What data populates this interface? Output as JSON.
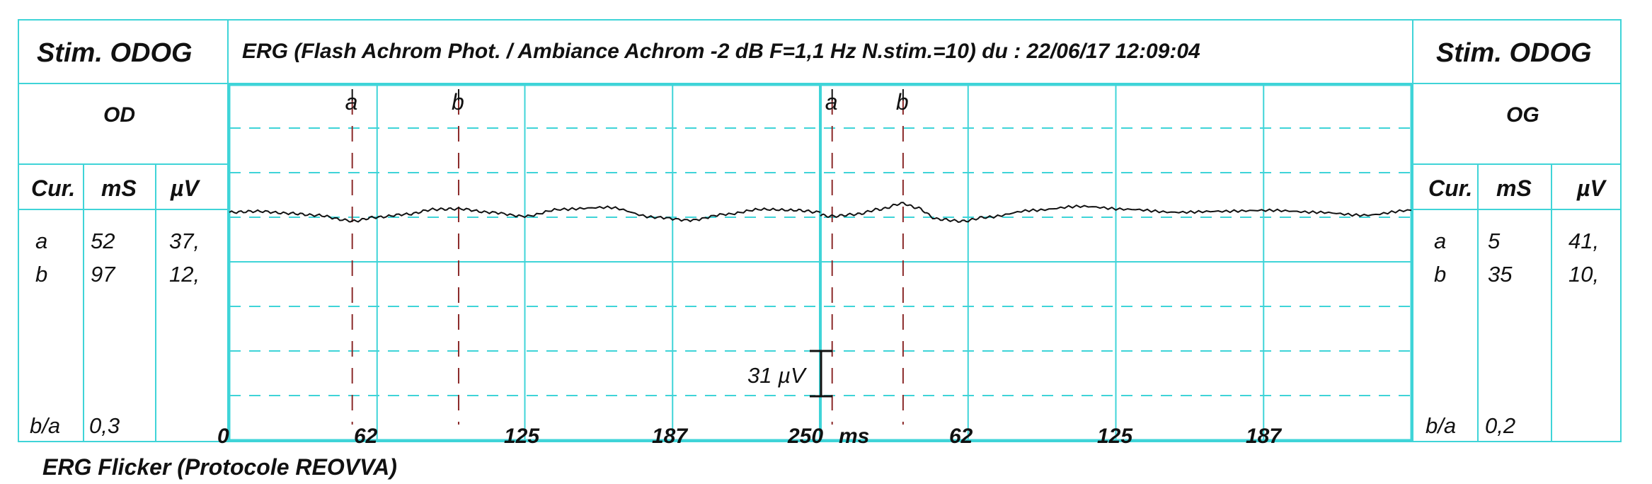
{
  "header": {
    "left_title": "Stim. ODOG",
    "right_title": "Stim. ODOG",
    "main_title": "ERG (Flash Achrom Phot. / Ambiance Achrom -2 dB  F=1,1 Hz  N.stim.=10)   du : 22/06/17 12:09:04"
  },
  "left_panel": {
    "eye": "OD",
    "columns": [
      "Cur.",
      "mS",
      "µV"
    ],
    "rows": [
      {
        "cur": "a",
        "ms": "52",
        "uv": "37,"
      },
      {
        "cur": "b",
        "ms": "97",
        "uv": "12,"
      }
    ],
    "ratio_label": "b/a",
    "ratio_value": "0,3"
  },
  "right_panel": {
    "eye": "OG",
    "columns": [
      "Cur.",
      "mS",
      "µV"
    ],
    "rows": [
      {
        "cur": "a",
        "ms": "5",
        "uv": "41,"
      },
      {
        "cur": "b",
        "ms": "35",
        "uv": "10,"
      }
    ],
    "ratio_label": "b/a",
    "ratio_value": "0,2"
  },
  "footer": "ERG Flicker (Protocole REOVVA)",
  "colors": {
    "grid": "#3fd4d8",
    "marker": "#8b2a2a",
    "trace": "#111111"
  },
  "chart_data": {
    "type": "line",
    "x_ticks": [
      "0",
      "62",
      "125",
      "187",
      "250",
      "ms",
      "62",
      "125",
      "187"
    ],
    "scale_bar_label": "31 µV",
    "xlim_per_segment_ms": [
      0,
      250
    ],
    "grid": true,
    "series": [
      {
        "name": "OD",
        "markers": [
          {
            "label": "a",
            "ms": 52
          },
          {
            "label": "b",
            "ms": 97
          }
        ],
        "x": [
          0,
          12,
          25,
          37,
          50,
          52,
          62,
          75,
          87,
          97,
          110,
          125,
          140,
          160,
          180,
          195,
          210,
          225,
          240,
          250
        ],
        "y": [
          0.0,
          0.1,
          -0.1,
          -0.3,
          -0.8,
          -0.9,
          -0.5,
          -0.2,
          0.3,
          0.35,
          0.0,
          -0.4,
          0.3,
          0.5,
          -0.5,
          -0.8,
          -0.2,
          0.3,
          0.2,
          0.0
        ]
      },
      {
        "name": "OG",
        "markers": [
          {
            "label": "a",
            "ms": 5
          },
          {
            "label": "b",
            "ms": 35
          }
        ],
        "x": [
          0,
          5,
          15,
          25,
          35,
          40,
          50,
          60,
          70,
          90,
          110,
          130,
          150,
          170,
          190,
          210,
          230,
          250
        ],
        "y": [
          -0.3,
          -0.4,
          -0.2,
          0.3,
          0.9,
          0.5,
          -0.7,
          -0.9,
          -0.5,
          0.2,
          0.6,
          0.3,
          0.0,
          0.1,
          0.2,
          0.0,
          -0.3,
          0.2
        ]
      }
    ]
  }
}
